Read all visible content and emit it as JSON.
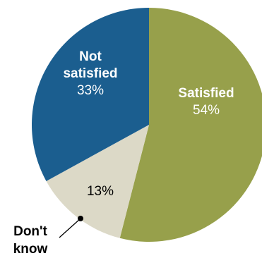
{
  "chart_data": {
    "type": "pie",
    "slices": [
      {
        "name_lines": [
          "Satisfied"
        ],
        "value": 54,
        "label": "54%",
        "color": "#97a04b",
        "text_color": "#ffffff"
      },
      {
        "name_lines": [
          "Don't",
          "know"
        ],
        "value": 13,
        "label": "13%",
        "color": "#dcd9c7",
        "text_color": "#000000"
      },
      {
        "name_lines": [
          "Not",
          "satisfied"
        ],
        "value": 33,
        "label": "33%",
        "color": "#1b5e8f",
        "text_color": "#ffffff"
      }
    ],
    "start_angle_deg": 0,
    "direction": "clockwise",
    "legend": "none",
    "callout_slice": "Don't know"
  }
}
